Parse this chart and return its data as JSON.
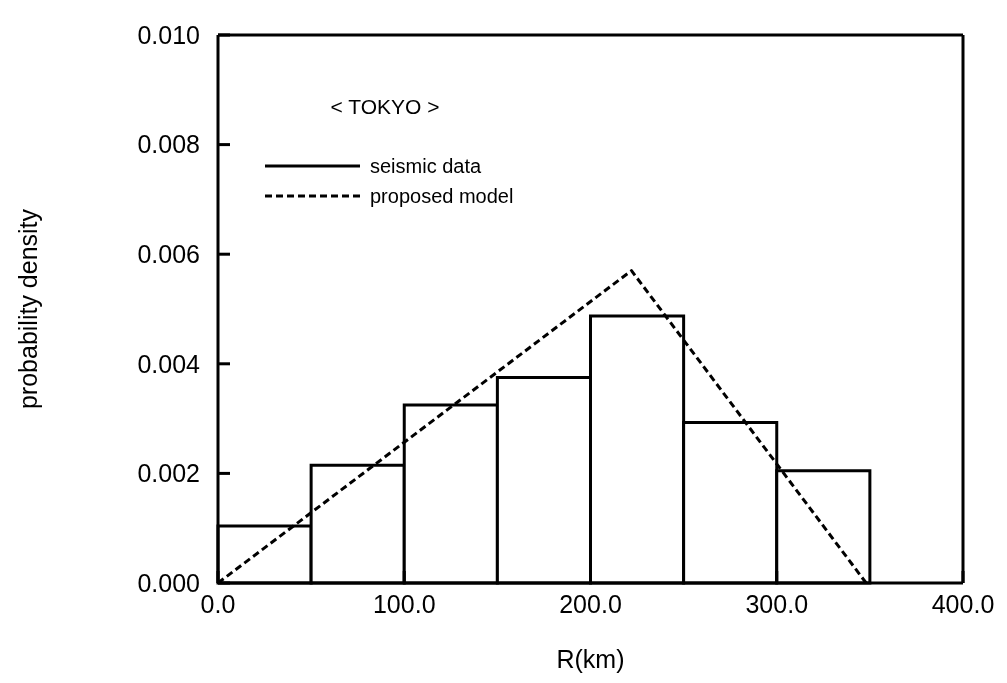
{
  "chart_data": {
    "type": "histogram",
    "xlabel": "R(km)",
    "ylabel": "probability density",
    "legend_title": "< TOKYO >",
    "legend": "top left",
    "xlim": [
      0,
      400
    ],
    "xticks": [
      {
        "value": 0,
        "label": "0.0"
      },
      {
        "value": 100,
        "label": "100.0"
      },
      {
        "value": 200,
        "label": "200.0"
      },
      {
        "value": 300,
        "label": "300.0"
      },
      {
        "value": 400,
        "label": "400.0"
      }
    ],
    "ylim": [
      0,
      0.01
    ],
    "yticks": [
      {
        "value": 0,
        "label": "0.000"
      },
      {
        "value": 0.002,
        "label": "0.002"
      },
      {
        "value": 0.004,
        "label": "0.004"
      },
      {
        "value": 0.006,
        "label": "0.006"
      },
      {
        "value": 0.008,
        "label": "0.008"
      },
      {
        "value": 0.01,
        "label": "0.010"
      }
    ],
    "series": [
      {
        "name": "seismic data",
        "color": "#000000",
        "line_style": "solid",
        "bins": [
          0,
          50,
          100,
          150,
          200,
          250,
          300,
          350
        ],
        "values": [
          0.00104,
          0.00215,
          0.00325,
          0.00375,
          0.00487,
          0.00293,
          0.00205
        ]
      },
      {
        "type": "line",
        "name": "proposed model",
        "color": "#000000",
        "line_style": "dashed",
        "x": [
          0,
          222,
          348
        ],
        "values": [
          0,
          0.0057,
          0
        ]
      }
    ]
  }
}
